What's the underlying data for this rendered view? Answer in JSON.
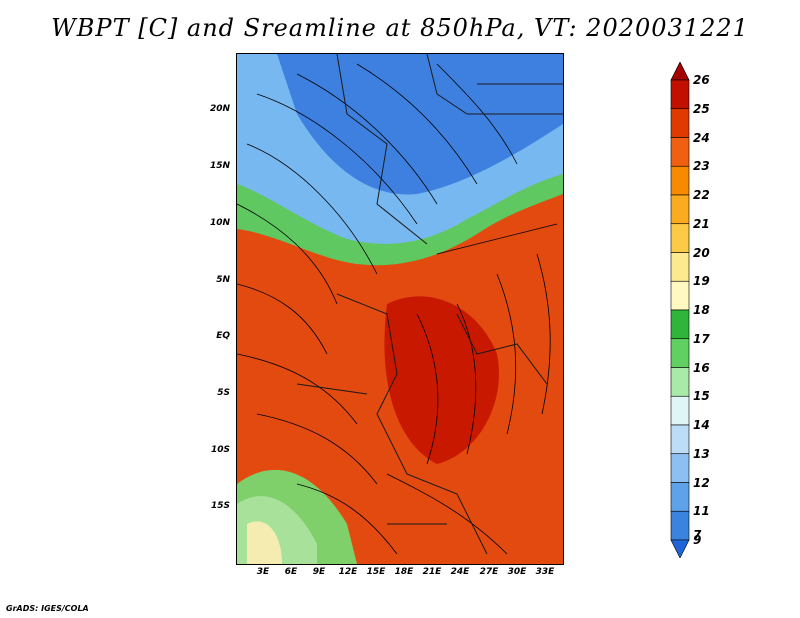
{
  "title": "WBPT [C] and Sreamline at 850hPa, VT: 2020031221",
  "footer": "GrADS: IGES/COLA",
  "lat_ticks": [
    "20N",
    "15N",
    "10N",
    "5N",
    "EQ",
    "5S",
    "10S",
    "15S"
  ],
  "lon_ticks": [
    "3E",
    "6E",
    "9E",
    "12E",
    "15E",
    "18E",
    "21E",
    "24E",
    "27E",
    "30E",
    "33E"
  ],
  "colorbar": {
    "labels": [
      "26",
      "25",
      "24",
      "23",
      "22",
      "21",
      "20",
      "19",
      "18",
      "17",
      "16",
      "15",
      "14",
      "13",
      "12",
      "11",
      "9",
      "7"
    ],
    "colors": [
      "#a50000",
      "#c21000",
      "#e03a00",
      "#f06010",
      "#f78a00",
      "#fbab20",
      "#fdca48",
      "#fde98e",
      "#fff8c0",
      "#2eb53a",
      "#60d060",
      "#a8eaa8",
      "#e0f6f6",
      "#bcdcf8",
      "#8cc0f2",
      "#5ea2ea",
      "#3a84e0",
      "#1c64d8"
    ]
  }
}
